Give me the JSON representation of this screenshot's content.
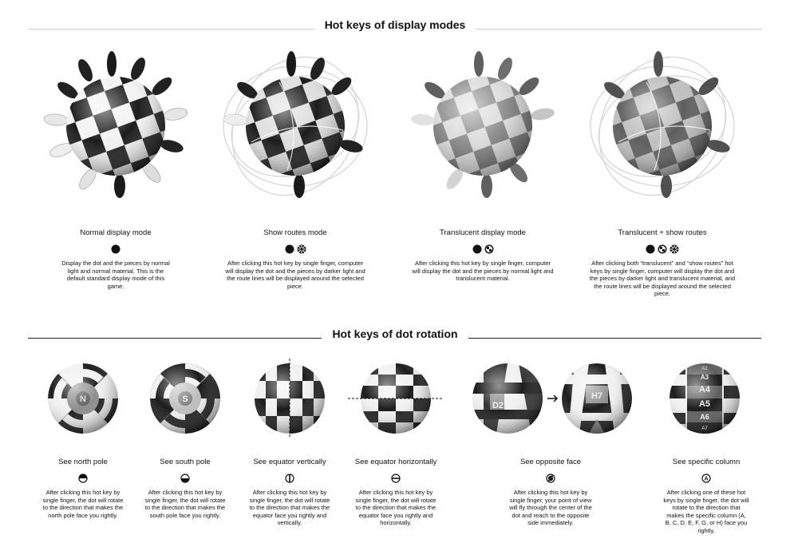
{
  "display_modes": {
    "title": "Hot keys of display modes",
    "items": [
      {
        "label": "Normal display mode",
        "keys": [
          "dot-key-icon"
        ],
        "description": "Display the dot and the pieces by normal light and normal material. This is the default standard display mode of this game."
      },
      {
        "label": "Show routes mode",
        "keys": [
          "dot-key-icon",
          "routes-key-icon"
        ],
        "description": "After clicking this hot key by single finger, computer will display the dot and the pieces by darker light and the route lines will be displayed around the selected piece."
      },
      {
        "label": "Translucent display mode",
        "keys": [
          "dot-key-icon",
          "translucent-key-icon"
        ],
        "description": "After clicking this hot key by single finger, computer will display the dot and the pieces by normal light and translucent material."
      },
      {
        "label": "Translucent + show routes",
        "keys": [
          "dot-key-icon",
          "translucent-key-icon",
          "routes-key-icon"
        ],
        "description": "After clicking both “translucent” and “show routes” hot keys by single finger, computer will display the dot and the pieces by darker light and translucent material, and the route lines will be displayed around the selected piece."
      }
    ]
  },
  "dot_rotation": {
    "title": "Hot keys of dot rotation",
    "items": [
      {
        "label": "See north pole",
        "key": "north-pole-key-icon",
        "description": "After clicking this hot key by single finger, the dot will rotate to the direction that makes the north pole face you rightly.",
        "sphere_text": "N"
      },
      {
        "label": "See south pole",
        "key": "south-pole-key-icon",
        "description": "After clicking this hot key by single finger, the dot will rotate to the direction that makes the south pole face you rightly.",
        "sphere_text": "S"
      },
      {
        "label": "See equator vertically",
        "key": "equator-vertical-key-icon",
        "description": "After clicking this hot key by single finger, the dot will rotate to the direction that makes the equator face you rightly and vertically."
      },
      {
        "label": "See equator horizontally",
        "key": "equator-horizontal-key-icon",
        "description": "After clicking this hot key by single finger, the dot will rotate to the direction that makes the equator face you rightly and horizontally."
      },
      {
        "label": "See opposite face",
        "key": "opposite-face-key-icon",
        "description": "After clicking this hot key by single finger, your point of view will fly through the center of the dot and reach to the opposite side immediately.",
        "sphere_text": [
          "D2",
          "H7"
        ]
      },
      {
        "label": "See specific column",
        "key": "column-key-icon",
        "key_letter": "A",
        "description": "After clicking one of these hot keys by single finger, the dot will rotate to the direction that makes the specific column (A, B, C, D, E, F, G, or H) face you rightly.",
        "sphere_text": [
          "A2",
          "A3",
          "A4",
          "A5",
          "A6",
          "A7"
        ]
      }
    ]
  }
}
